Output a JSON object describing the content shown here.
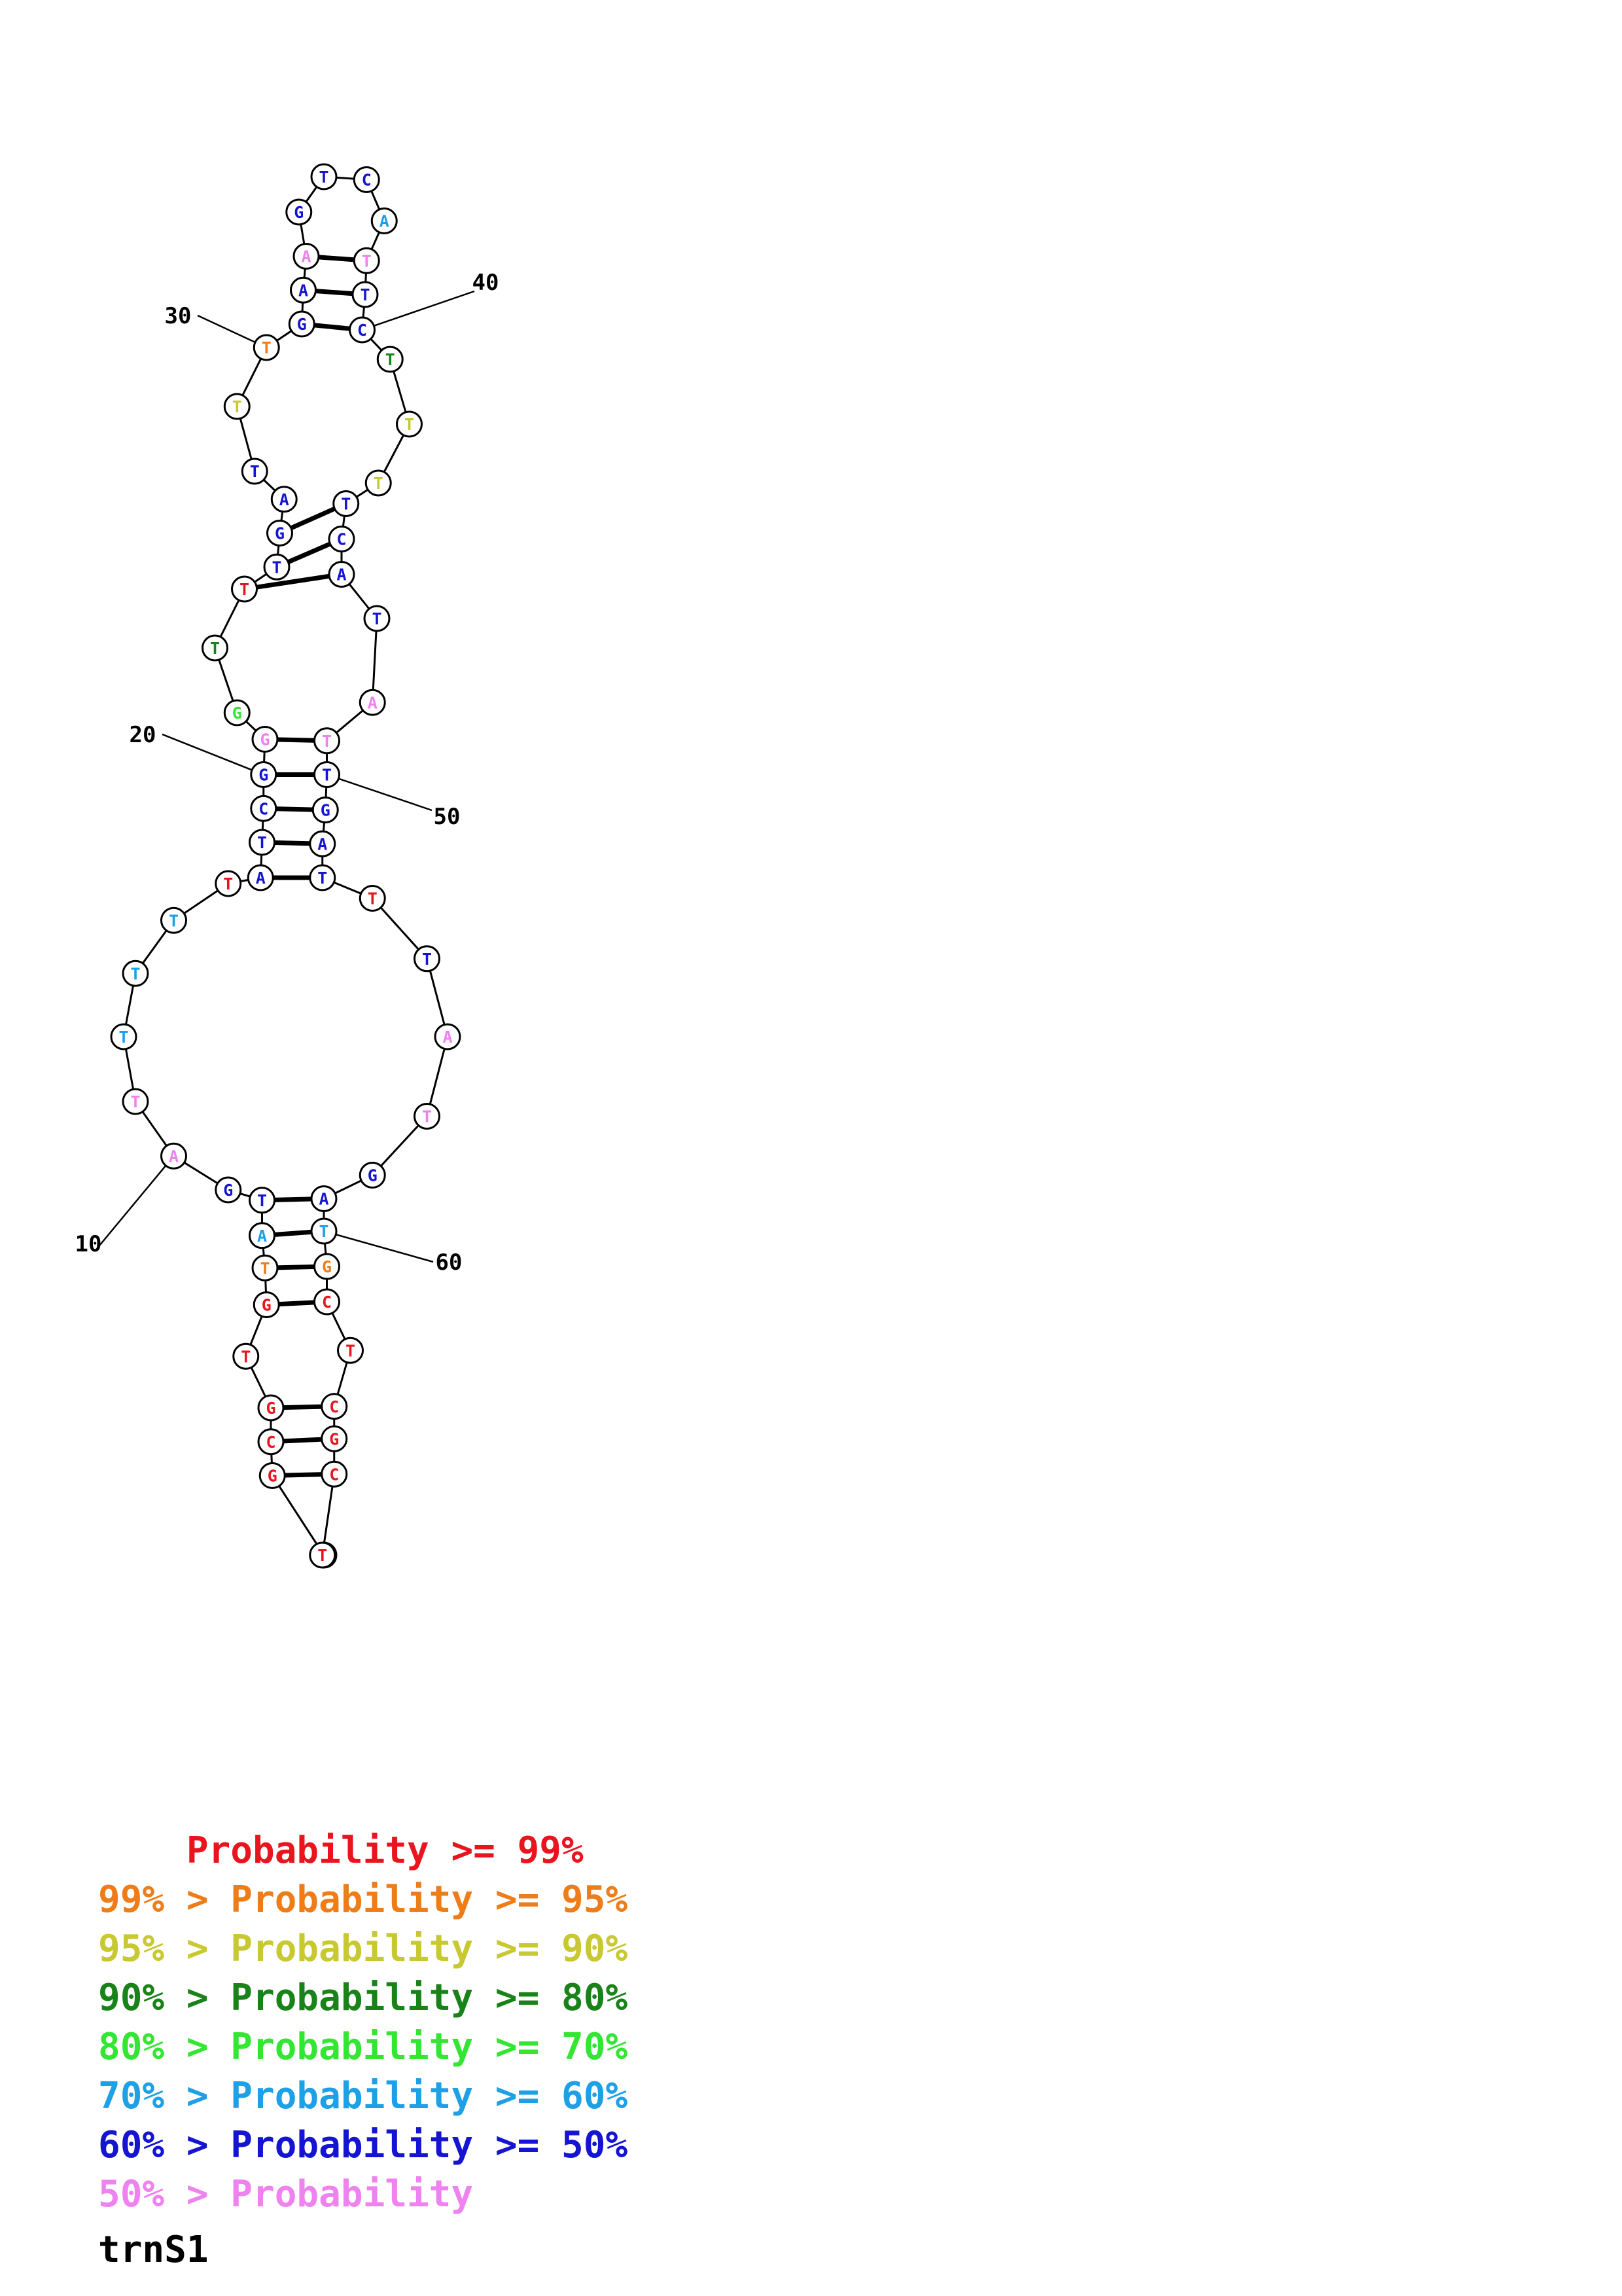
{
  "colors": {
    "p99": "#e8141e",
    "p95": "#ee7d19",
    "p90": "#c8c832",
    "p80": "#198219",
    "p70": "#32e632",
    "p60": "#1ea0e6",
    "p50": "#1414d2",
    "p0": "#ee82ee"
  },
  "sequence": [
    {
      "n": 1,
      "base": "T",
      "prob": "p99"
    },
    {
      "n": 2,
      "base": "G",
      "prob": "p99"
    },
    {
      "n": 3,
      "base": "C",
      "prob": "p99"
    },
    {
      "n": 4,
      "base": "G",
      "prob": "p99"
    },
    {
      "n": 5,
      "base": "T",
      "prob": "p99"
    },
    {
      "n": 6,
      "base": "G",
      "prob": "p99"
    },
    {
      "n": 7,
      "base": "T",
      "prob": "p95"
    },
    {
      "n": 8,
      "base": "A",
      "prob": "p60"
    },
    {
      "n": 9,
      "base": "T",
      "prob": "p50"
    },
    {
      "n": 10,
      "base": "G",
      "prob": "p50"
    },
    {
      "n": 11,
      "base": "A",
      "prob": "p0"
    },
    {
      "n": 12,
      "base": "T",
      "prob": "p0"
    },
    {
      "n": 13,
      "base": "T",
      "prob": "p60"
    },
    {
      "n": 14,
      "base": "T",
      "prob": "p60"
    },
    {
      "n": 15,
      "base": "T",
      "prob": "p60"
    },
    {
      "n": 16,
      "base": "T",
      "prob": "p99"
    },
    {
      "n": 17,
      "base": "A",
      "prob": "p50"
    },
    {
      "n": 18,
      "base": "T",
      "prob": "p50"
    },
    {
      "n": 19,
      "base": "C",
      "prob": "p50"
    },
    {
      "n": 20,
      "base": "G",
      "prob": "p50"
    },
    {
      "n": 21,
      "base": "G",
      "prob": "p0"
    },
    {
      "n": 22,
      "base": "G",
      "prob": "p70"
    },
    {
      "n": 23,
      "base": "T",
      "prob": "p80"
    },
    {
      "n": 24,
      "base": "T",
      "prob": "p99"
    },
    {
      "n": 25,
      "base": "T",
      "prob": "p50"
    },
    {
      "n": 26,
      "base": "G",
      "prob": "p50"
    },
    {
      "n": 27,
      "base": "A",
      "prob": "p50"
    },
    {
      "n": 28,
      "base": "T",
      "prob": "p50"
    },
    {
      "n": 29,
      "base": "T",
      "prob": "p90"
    },
    {
      "n": 30,
      "base": "T",
      "prob": "p95"
    },
    {
      "n": 31,
      "base": "G",
      "prob": "p50"
    },
    {
      "n": 32,
      "base": "A",
      "prob": "p50"
    },
    {
      "n": 33,
      "base": "A",
      "prob": "p0"
    },
    {
      "n": 34,
      "base": "G",
      "prob": "p50"
    },
    {
      "n": 35,
      "base": "T",
      "prob": "p50"
    },
    {
      "n": 36,
      "base": "C",
      "prob": "p50"
    },
    {
      "n": 37,
      "base": "A",
      "prob": "p60"
    },
    {
      "n": 38,
      "base": "T",
      "prob": "p0"
    },
    {
      "n": 39,
      "base": "T",
      "prob": "p50"
    },
    {
      "n": 40,
      "base": "C",
      "prob": "p50"
    },
    {
      "n": 41,
      "base": "T",
      "prob": "p80"
    },
    {
      "n": 42,
      "base": "T",
      "prob": "p90"
    },
    {
      "n": 43,
      "base": "T",
      "prob": "p90"
    },
    {
      "n": 44,
      "base": "T",
      "prob": "p50"
    },
    {
      "n": 45,
      "base": "C",
      "prob": "p50"
    },
    {
      "n": 46,
      "base": "A",
      "prob": "p50"
    },
    {
      "n": 47,
      "base": "T",
      "prob": "p50"
    },
    {
      "n": 48,
      "base": "A",
      "prob": "p0"
    },
    {
      "n": 49,
      "base": "T",
      "prob": "p0"
    },
    {
      "n": 50,
      "base": "T",
      "prob": "p50"
    },
    {
      "n": 51,
      "base": "G",
      "prob": "p50"
    },
    {
      "n": 52,
      "base": "A",
      "prob": "p50"
    },
    {
      "n": 53,
      "base": "T",
      "prob": "p50"
    },
    {
      "n": 54,
      "base": "T",
      "prob": "p99"
    },
    {
      "n": 55,
      "base": "T",
      "prob": "p50"
    },
    {
      "n": 56,
      "base": "A",
      "prob": "p0"
    },
    {
      "n": 57,
      "base": "T",
      "prob": "p0"
    },
    {
      "n": 58,
      "base": "G",
      "prob": "p50"
    },
    {
      "n": 59,
      "base": "A",
      "prob": "p50"
    },
    {
      "n": 60,
      "base": "T",
      "prob": "p60"
    },
    {
      "n": 61,
      "base": "G",
      "prob": "p95"
    },
    {
      "n": 62,
      "base": "C",
      "prob": "p99"
    },
    {
      "n": 63,
      "base": "T",
      "prob": "p99"
    },
    {
      "n": 64,
      "base": "C",
      "prob": "p99"
    },
    {
      "n": 65,
      "base": "G",
      "prob": "p99"
    },
    {
      "n": 66,
      "base": "C",
      "prob": "p99"
    },
    {
      "n": 67,
      "base": "T",
      "prob": "p99"
    }
  ],
  "pairs": [
    [
      2,
      66
    ],
    [
      3,
      65
    ],
    [
      4,
      64
    ],
    [
      6,
      62
    ],
    [
      7,
      61
    ],
    [
      8,
      60
    ],
    [
      9,
      59
    ],
    [
      17,
      53
    ],
    [
      18,
      52
    ],
    [
      19,
      51
    ],
    [
      20,
      50
    ],
    [
      21,
      49
    ],
    [
      24,
      46
    ],
    [
      25,
      45
    ],
    [
      26,
      44
    ],
    [
      31,
      40
    ],
    [
      32,
      39
    ],
    [
      33,
      38
    ]
  ],
  "position_labels": [
    "10",
    "20",
    "30",
    "40",
    "50",
    "60"
  ],
  "legend": [
    {
      "prefix": "    ",
      "text": "Probability >= 99%",
      "color": "p99"
    },
    {
      "prefix": "99% > ",
      "text": "Probability >= 95%",
      "color": "p95"
    },
    {
      "prefix": "95% > ",
      "text": "Probability >= 90%",
      "color": "p90"
    },
    {
      "prefix": "90% > ",
      "text": "Probability >= 80%",
      "color": "p80"
    },
    {
      "prefix": "80% > ",
      "text": "Probability >= 70%",
      "color": "p70"
    },
    {
      "prefix": "70% > ",
      "text": "Probability >= 60%",
      "color": "p60"
    },
    {
      "prefix": "60% > ",
      "text": "Probability >= 50%",
      "color": "p50"
    },
    {
      "prefix": "50% > ",
      "text": "Probability",
      "color": "p0"
    }
  ],
  "name": "trnS1"
}
